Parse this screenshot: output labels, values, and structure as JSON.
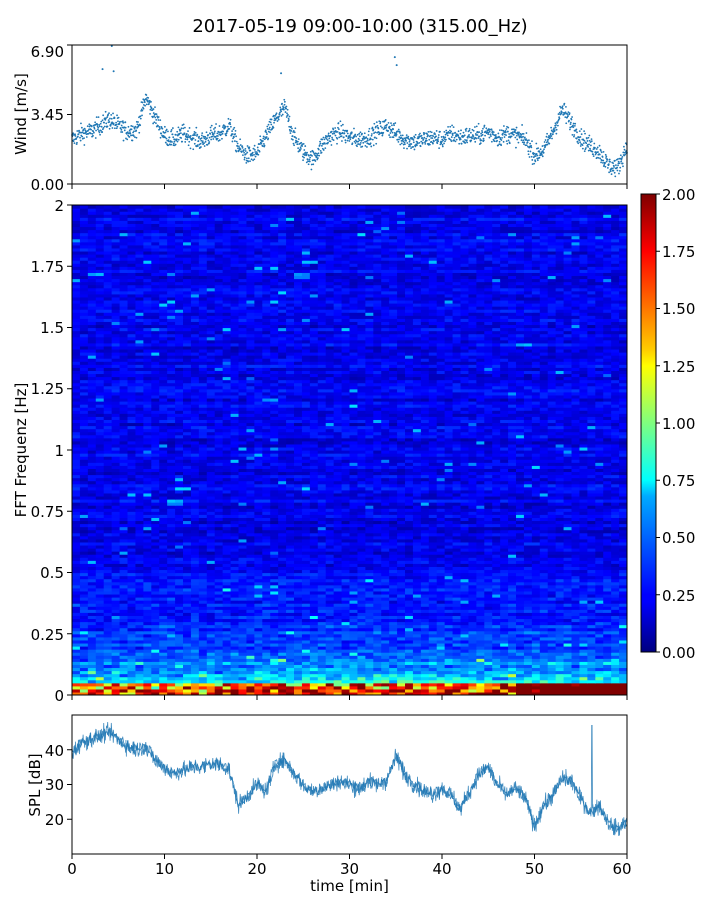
{
  "title": "2017-05-19 09:00-10:00 (315.00_Hz)",
  "chart_data": [
    {
      "type": "scatter",
      "ylabel": "Wind [m/s]",
      "xlim": [
        0,
        60
      ],
      "ylim": [
        0,
        6.9
      ],
      "yticks": [
        "0.00",
        "3.45",
        "6.90"
      ],
      "color": "#1f77b4",
      "shape": {
        "x": [
          0,
          1,
          2,
          3,
          4,
          5,
          6,
          7,
          8,
          9,
          10,
          11,
          12,
          13,
          14,
          15,
          16,
          17,
          18,
          19,
          20,
          21,
          22,
          23,
          24,
          25,
          26,
          27,
          28,
          29,
          30,
          31,
          32,
          33,
          34,
          35,
          36,
          37,
          38,
          39,
          40,
          41,
          42,
          43,
          44,
          45,
          46,
          47,
          48,
          49,
          50,
          51,
          52,
          53,
          54,
          55,
          56,
          57,
          58,
          59,
          60
        ],
        "y": [
          2.2,
          2.5,
          2.6,
          2.9,
          3.2,
          2.9,
          2.6,
          2.7,
          4.3,
          3.3,
          2.4,
          2.2,
          2.5,
          2.3,
          2.1,
          2.4,
          2.5,
          2.9,
          1.8,
          1.4,
          1.5,
          2.4,
          3.2,
          3.8,
          2.3,
          1.6,
          1.2,
          1.9,
          2.4,
          2.6,
          2.3,
          2.2,
          2.3,
          2.6,
          2.9,
          2.5,
          2.2,
          2.1,
          2.2,
          2.3,
          2.2,
          2.5,
          2.3,
          2.4,
          2.4,
          2.6,
          2.3,
          2.5,
          2.4,
          2.2,
          1.4,
          1.7,
          2.6,
          3.7,
          3.0,
          2.3,
          1.9,
          1.6,
          0.9,
          0.8,
          1.9
        ]
      }
    },
    {
      "type": "heatmap",
      "ylabel": "FFT Frequenz [Hz]",
      "xlim": [
        0,
        60
      ],
      "ylim": [
        0,
        2
      ],
      "yticks": [
        "0",
        "0.25",
        "0.5",
        "0.75",
        "1",
        "1.25",
        "1.5",
        "1.75",
        "2"
      ],
      "colormap": "jet",
      "clim": [
        0,
        2
      ],
      "colorbar_ticks": [
        "0.00",
        "0.25",
        "0.50",
        "0.75",
        "1.00",
        "1.25",
        "1.50",
        "1.75",
        "2.00"
      ]
    },
    {
      "type": "line",
      "ylabel": "SPL [dB]",
      "xlabel": "time [min]",
      "xlim": [
        0,
        60
      ],
      "ylim": [
        10,
        50
      ],
      "xticks": [
        "0",
        "10",
        "20",
        "30",
        "40",
        "50",
        "60"
      ],
      "yticks": [
        "20",
        "30",
        "40"
      ],
      "color": "#1f77b4",
      "x": [
        0,
        1,
        2,
        3,
        4,
        5,
        6,
        7,
        8,
        9,
        10,
        11,
        12,
        13,
        14,
        15,
        16,
        17,
        18,
        19,
        20,
        21,
        22,
        23,
        24,
        25,
        26,
        27,
        28,
        29,
        30,
        31,
        32,
        33,
        34,
        35,
        36,
        37,
        38,
        39,
        40,
        41,
        42,
        43,
        44,
        45,
        46,
        47,
        48,
        49,
        50,
        51,
        52,
        53,
        54,
        55,
        56,
        57,
        58,
        59,
        60
      ],
      "y": [
        39,
        42,
        43,
        44,
        45,
        43,
        41,
        40,
        41,
        37,
        35,
        33,
        34,
        35,
        35,
        36,
        36,
        34,
        24,
        27,
        30,
        28,
        36,
        37,
        33,
        30,
        28,
        29,
        30,
        31,
        30,
        29,
        31,
        30,
        31,
        38,
        33,
        30,
        28,
        27,
        29,
        27,
        23,
        28,
        33,
        35,
        30,
        27,
        29,
        26,
        18,
        24,
        27,
        32,
        31,
        26,
        22,
        24,
        19,
        17,
        20
      ]
    }
  ]
}
